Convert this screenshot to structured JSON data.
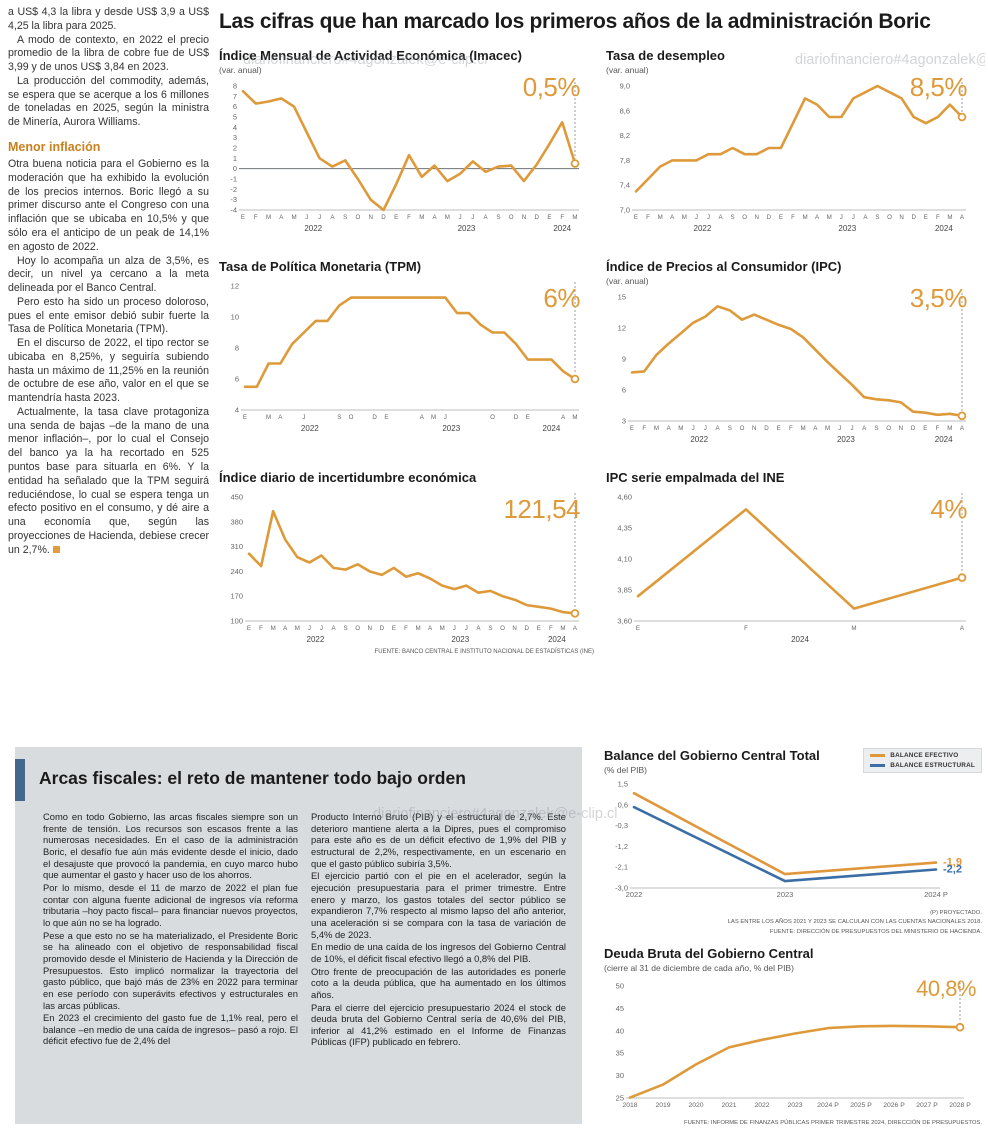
{
  "colors": {
    "accent": "#DE9A3A",
    "blue": "#3A6EA5",
    "gray_box": "#d9dcdf",
    "headline_bar": "#44688C",
    "subhead_orange": "#C9801F"
  },
  "left_column": {
    "intro_paragraphs": [
      "a US$ 4,3 la libra y desde US$ 3,9 a US$ 4,25 la libra para 2025.",
      "A modo de contexto, en 2022 el precio promedio de la libra de cobre fue de US$ 3,99 y de unos US$ 3,84 en 2023.",
      "La producción del commodity, además, se espera que se acerque a los 6 millones de toneladas en 2025, según la ministra de Minería, Aurora Williams."
    ],
    "subhead": "Menor inflación",
    "inflation_paragraphs": [
      "Otra buena noticia para el Gobierno es la moderación que ha exhibido la evolución de los precios internos. Boric llegó a su primer discurso ante el Congreso con una inflación que se ubicaba en 10,5% y que sólo era el anticipo de un peak de 14,1% en agosto de 2022.",
      "Hoy lo acompaña un alza de 3,5%, es decir, un nivel ya cercano a la meta delineada por el Banco Central.",
      "Pero esto ha sido un proceso doloroso, pues el ente emisor debió subir fuerte la Tasa de Política Monetaria (TPM).",
      "En el discurso de 2022, el tipo rector se ubicaba en 8,25%, y seguiría subiendo hasta un máximo de 11,25% en la reunión de octubre de ese año, valor en el que se mantendría hasta 2023."
    ],
    "closing_paragraph": "Actualmente, la tasa clave protagoniza una senda de bajas –de la mano de una menor inflación–, por lo cual el Consejo del banco ya la ha recortado en 525 puntos base para situarla en 6%. Y la entidad ha señalado que la TPM seguirá reduciéndose, lo cual se espera tenga un efecto positivo en el consumo, y dé aire a una economía que, según las proyecciones de Hacienda, debiese crecer un 2,7%."
  },
  "main": {
    "headline": "Las cifras que han marcado los primeros años de la administración Boric"
  },
  "bottom": {
    "headline": "Arcas fiscales: el reto de mantener todo bajo orden",
    "col1_paragraphs": [
      "Como en todo Gobierno, las arcas fiscales siempre son un frente de tensión. Los recursos son escasos frente a las numerosas necesidades. En el caso de la administración Boric, el desafío fue aún más evidente desde el inicio, dado el desajuste que provocó la pandemia, en cuyo marco hubo que aumentar el gasto y hacer uso de los ahorros.",
      "Por lo mismo, desde el 11 de marzo de 2022 el plan fue contar con alguna fuente adicional de ingresos vía reforma tributaria –hoy pacto fiscal– para financiar nuevos proyectos, lo que aún no se ha logrado.",
      "Pese a que esto no se ha materializado, el Presidente Boric se ha alineado con el objetivo de responsabilidad fiscal promovido desde el Ministerio de Hacienda y la Dirección de Presupuestos. Esto implicó normalizar la trayectoria del gasto público, que bajó más de 23% en 2022 para terminar en ese período con superávits efectivos y estructurales en las arcas públicas.",
      "En 2023 el crecimiento del gasto fue de 1,1% real, pero el balance –en medio de una caída de ingresos– pasó a rojo. El déficit efectivo fue de 2,4% del"
    ],
    "col2_paragraphs": [
      "Producto Interno Bruto (PIB) y el estructural de 2,7%. Este deterioro mantiene alerta a la Dipres, pues el compromiso para este año es de un déficit efectivo de 1,9% del PIB y estructural de 2,2%, respectivamente, en un escenario en que el gasto público subiría 3,5%.",
      "El ejercicio partió con el pie en el acelerador, según la ejecución presupuestaria para el primer trimestre. Entre enero y marzo, los gastos totales del sector público se expandieron 7,7% respecto al mismo lapso del año anterior, una aceleración si se compara con la tasa de variación de 5,4% de 2023.",
      "En medio de una caída de los ingresos del Gobierno Central de 10%, el déficit fiscal efectivo llegó a 0,8% del PIB.",
      "Otro frente de preocupación de las autoridades es ponerle coto a la deuda pública, que ha aumentado en los últimos años.",
      "Para el cierre del ejercicio presupuestario 2024 el stock de deuda bruta del Gobierno Central sería de 40,6% del PIB, inferior al 41,2% estimado en el Informe de Finanzas Públicas (IFP) publicado en febrero."
    ]
  },
  "watermarks": [
    "diariofinanciero#4agonzalek@e-clip.cl",
    "diariofinanciero#4agonzalek@e-clip.cl",
    "diariofinanciero#4agonzalek@e-clip.cl"
  ],
  "chart_data": [
    {
      "id": "imacec",
      "type": "line",
      "title": "Índice Mensual de Actividad Económica (Imacec)",
      "subtitle": "(var. anual)",
      "big_value": "0,5%",
      "color": "#DE9A3A",
      "ylim": [
        -4,
        8
      ],
      "y_ticks": [
        "8",
        "7",
        "6",
        "5",
        "4",
        "3",
        "2",
        "1",
        "0",
        "-1",
        "-2",
        "-3",
        "-4"
      ],
      "x_labels": [
        "E",
        "F",
        "M",
        "A",
        "M",
        "J",
        "J",
        "A",
        "S",
        "O",
        "N",
        "D",
        "E",
        "F",
        "M",
        "A",
        "M",
        "J",
        "J",
        "A",
        "S",
        "O",
        "N",
        "D",
        "E",
        "F",
        "M"
      ],
      "years": [
        {
          "label": "2022",
          "from": 0,
          "to": 11
        },
        {
          "label": "2023",
          "from": 12,
          "to": 23
        },
        {
          "label": "2024",
          "from": 24,
          "to": 26
        }
      ],
      "values": [
        7.5,
        6.3,
        6.5,
        6.8,
        6.0,
        3.5,
        1.0,
        0.2,
        0.8,
        -1.0,
        -3.0,
        -4.0,
        -1.5,
        1.3,
        -0.8,
        0.3,
        -1.2,
        -0.5,
        0.7,
        -0.3,
        0.2,
        0.3,
        -1.2,
        0.4,
        2.4,
        4.5,
        0.5
      ],
      "zero_line": true,
      "end_marker": true
    },
    {
      "id": "desempleo",
      "type": "line",
      "title": "Tasa de desempleo",
      "subtitle": "(var. anual)",
      "big_value": "8,5%",
      "color": "#DE9A3A",
      "ylim": [
        7.0,
        9.0
      ],
      "y_ticks": [
        "9,0",
        "8,6",
        "8,2",
        "7,8",
        "7,4",
        "7,0"
      ],
      "x_labels": [
        "E",
        "F",
        "M",
        "A",
        "M",
        "J",
        "J",
        "A",
        "S",
        "O",
        "N",
        "D",
        "E",
        "F",
        "M",
        "A",
        "M",
        "J",
        "J",
        "A",
        "S",
        "O",
        "N",
        "D",
        "E",
        "F",
        "M",
        "A"
      ],
      "years": [
        {
          "label": "2022",
          "from": 0,
          "to": 11
        },
        {
          "label": "2023",
          "from": 12,
          "to": 23
        },
        {
          "label": "2024",
          "from": 24,
          "to": 27
        }
      ],
      "values": [
        7.3,
        7.5,
        7.7,
        7.8,
        7.8,
        7.8,
        7.9,
        7.9,
        8.0,
        7.9,
        7.9,
        8.0,
        8.0,
        8.4,
        8.8,
        8.7,
        8.5,
        8.5,
        8.8,
        8.9,
        9.0,
        8.9,
        8.8,
        8.5,
        8.4,
        8.5,
        8.7,
        8.5
      ],
      "end_marker": true
    },
    {
      "id": "tpm",
      "type": "line",
      "title": "Tasa de Política Monetaria (TPM)",
      "subtitle": "",
      "big_value": "6%",
      "color": "#DE9A3A",
      "ylim": [
        4,
        12
      ],
      "y_ticks": [
        "12",
        "10",
        "8",
        "6",
        "4"
      ],
      "x_labels": [
        "E",
        "",
        "M",
        "A",
        "",
        "J",
        "",
        "",
        "S",
        "O",
        "",
        "D",
        "E",
        "",
        "",
        "A",
        "M",
        "J",
        "",
        "",
        "",
        "O",
        "",
        "D",
        "E",
        "",
        "",
        "A",
        "M"
      ],
      "years": [
        {
          "label": "2022",
          "from": 0,
          "to": 11
        },
        {
          "label": "2023",
          "from": 12,
          "to": 23
        },
        {
          "label": "2024",
          "from": 24,
          "to": 28
        }
      ],
      "values": [
        5.5,
        5.5,
        7.0,
        7.0,
        8.25,
        9.0,
        9.75,
        9.75,
        10.75,
        11.25,
        11.25,
        11.25,
        11.25,
        11.25,
        11.25,
        11.25,
        11.25,
        11.25,
        10.25,
        10.25,
        9.5,
        9.0,
        9.0,
        8.25,
        7.25,
        7.25,
        7.25,
        6.5,
        6.0
      ],
      "end_marker": true
    },
    {
      "id": "ipc",
      "type": "line",
      "title": "Índice de Precios al Consumidor (IPC)",
      "subtitle": "(var. anual)",
      "big_value": "3,5%",
      "color": "#DE9A3A",
      "ylim": [
        3,
        15
      ],
      "y_ticks": [
        "15",
        "12",
        "9",
        "6",
        "3"
      ],
      "x_labels": [
        "E",
        "F",
        "M",
        "A",
        "M",
        "J",
        "J",
        "A",
        "S",
        "O",
        "N",
        "D",
        "E",
        "F",
        "M",
        "A",
        "M",
        "J",
        "J",
        "A",
        "S",
        "O",
        "N",
        "D",
        "E",
        "F",
        "M",
        "A"
      ],
      "years": [
        {
          "label": "2022",
          "from": 0,
          "to": 11
        },
        {
          "label": "2023",
          "from": 12,
          "to": 23
        },
        {
          "label": "2024",
          "from": 24,
          "to": 27
        }
      ],
      "values": [
        7.7,
        7.8,
        9.4,
        10.5,
        11.5,
        12.5,
        13.1,
        14.1,
        13.7,
        12.8,
        13.3,
        12.8,
        12.3,
        11.9,
        11.1,
        9.9,
        8.7,
        7.6,
        6.5,
        5.3,
        5.1,
        5.0,
        4.8,
        3.9,
        3.8,
        3.6,
        3.7,
        3.5
      ],
      "end_marker": true
    },
    {
      "id": "incertidumbre",
      "type": "line",
      "title": "Índice diario de incertidumbre económica",
      "subtitle": "",
      "big_value": "121,54",
      "color": "#DE9A3A",
      "ylim": [
        100,
        450
      ],
      "y_ticks": [
        "450",
        "380",
        "310",
        "240",
        "170",
        "100"
      ],
      "x_labels": [
        "E",
        "F",
        "M",
        "A",
        "M",
        "J",
        "J",
        "A",
        "S",
        "O",
        "N",
        "D",
        "E",
        "F",
        "M",
        "A",
        "M",
        "J",
        "J",
        "A",
        "S",
        "O",
        "N",
        "D",
        "E",
        "F",
        "M",
        "A"
      ],
      "years": [
        {
          "label": "2022",
          "from": 0,
          "to": 11
        },
        {
          "label": "2023",
          "from": 12,
          "to": 23
        },
        {
          "label": "2024",
          "from": 24,
          "to": 27
        }
      ],
      "values": [
        290,
        255,
        410,
        330,
        280,
        265,
        285,
        250,
        245,
        260,
        240,
        230,
        250,
        225,
        235,
        220,
        200,
        190,
        200,
        180,
        185,
        170,
        160,
        145,
        140,
        135,
        125,
        121.54
      ],
      "end_marker": true,
      "source": "FUENTE: BANCO CENTRAL E INSTITUTO NACIONAL DE ESTADÍSTICAS (INE)"
    },
    {
      "id": "ipc-empalmada",
      "type": "line",
      "title": "IPC serie empalmada del INE",
      "subtitle": "",
      "big_value": "4%",
      "color": "#DE9A3A",
      "ylim": [
        3.6,
        4.6
      ],
      "y_ticks": [
        "4,60",
        "4,35",
        "4,10",
        "3,85",
        "3,60"
      ],
      "x_labels": [
        "E",
        "F",
        "M",
        "A"
      ],
      "years": [
        {
          "label": "2024",
          "from": 0,
          "to": 3
        }
      ],
      "values": [
        3.8,
        4.5,
        3.7,
        3.95
      ],
      "end_marker": true
    },
    {
      "id": "balance",
      "type": "line",
      "title": "Balance del Gobierno Central Total",
      "subtitle": "(% del PIB)",
      "ylim": [
        -3.0,
        1.5
      ],
      "y_ticks": [
        "1,5",
        "0,6",
        "-0,3",
        "-1,2",
        "-2,1",
        "-3,0"
      ],
      "x_labels": [
        "2022",
        "2023",
        "2024 P"
      ],
      "series": [
        {
          "name": "BALANCE EFECTIVO",
          "color": "#E0963B",
          "values": [
            1.1,
            -2.4,
            -1.9
          ],
          "end_label": "-1,9"
        },
        {
          "name": "BALANCE ESTRUCTURAL",
          "color": "#3A6EA5",
          "values": [
            0.5,
            -2.7,
            -2.2
          ],
          "end_label": "-2,2"
        }
      ],
      "footnotes": [
        "(P) PROYECTADO.",
        "LAS ENTRE LOS AÑOS 2021 Y 2023 SE CALCULAN CON LAS CUENTAS NACIONALES 2018.",
        "FUENTE: DIRECCIÓN DE PRESUPUESTOS DEL MINISTERIO DE HACIENDA."
      ]
    },
    {
      "id": "deuda",
      "type": "line",
      "title": "Deuda Bruta del Gobierno Central",
      "subtitle": "(cierre al 31 de diciembre de cada año, % del PIB)",
      "big_value": "40,8%",
      "color": "#DE9A3A",
      "ylim": [
        25,
        50
      ],
      "y_ticks": [
        "50",
        "45",
        "40",
        "35",
        "30",
        "25"
      ],
      "x_labels": [
        "2018",
        "2019",
        "2020",
        "2021",
        "2022",
        "2023",
        "2024 P",
        "2025 P",
        "2026 P",
        "2027 P",
        "2028 P"
      ],
      "values": [
        25.1,
        28.0,
        32.5,
        36.3,
        38.0,
        39.4,
        40.6,
        41.0,
        41.1,
        41.0,
        40.8
      ],
      "end_marker": true,
      "footnotes": [
        "FUENTE: INFORME DE FINANZAS PÚBLICAS PRIMER TRIMESTRE 2024, DIRECCIÓN DE PRESUPUESTOS."
      ]
    }
  ]
}
